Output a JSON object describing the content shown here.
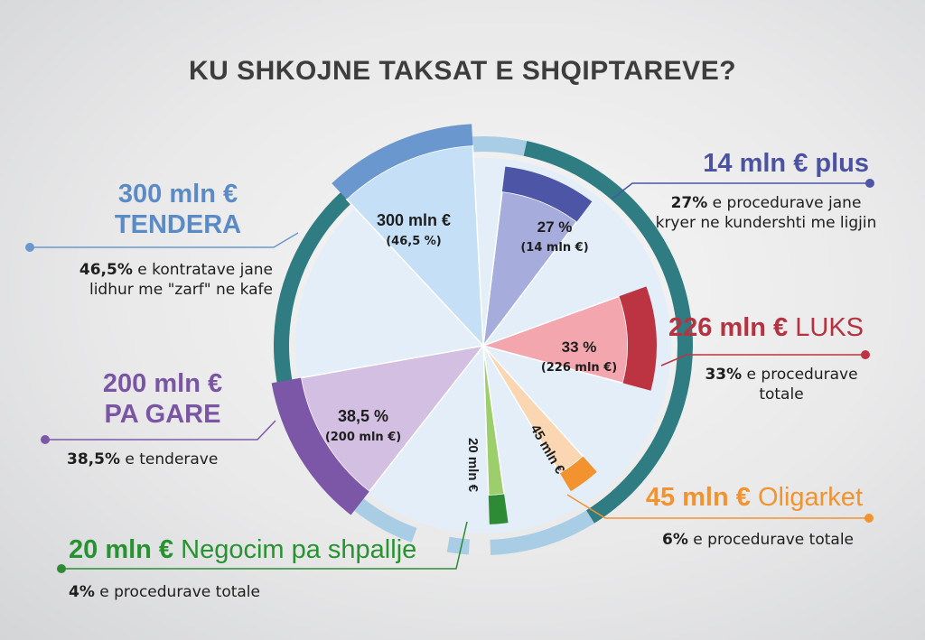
{
  "title": "KU SHKOJNE TAKSAT E SHQIPTAREVE?",
  "chart_data": {
    "type": "pie",
    "title": "KU SHKOJNE TAKSAT E SHQIPTAREVE?",
    "unit": "mln €",
    "slices": [
      {
        "id": "tendera",
        "value": 300,
        "pct": 46.5,
        "inner_label": "300 mln €",
        "inner_sub": "(46,5 %)",
        "callout": {
          "amount": "300 mln €",
          "name": "TENDERA",
          "desc_bold": "46,5%",
          "desc_rest": " e kontratave jane lidhur me \"zarf\" ne kafe"
        },
        "colors": {
          "fill": "#c5e0f6",
          "band": "#6b97cf",
          "text": "#5a8bc6",
          "line": "#6b97cf"
        }
      },
      {
        "id": "plus",
        "value": 14,
        "pct": 27,
        "inner_label": "27 %",
        "inner_sub": "(14 mln €)",
        "callout": {
          "amount": "14 mln € plus",
          "name": "",
          "desc_bold": "27%",
          "desc_rest": " e procedurave jane kryer ne kundershti me ligjin"
        },
        "colors": {
          "fill": "#a6acdb",
          "band": "#4c55a6",
          "text": "#4b52a2",
          "line": "#4c55a6"
        }
      },
      {
        "id": "luks",
        "value": 226,
        "pct": 33,
        "inner_label": "33 %",
        "inner_sub": "(226 mln €)",
        "callout": {
          "amount": "226 mln €",
          "name": "LUKS",
          "desc_bold": "33%",
          "desc_rest": " e procedurave totale"
        },
        "colors": {
          "fill": "#f3a6ae",
          "band": "#bc3441",
          "text": "#b53340",
          "line": "#bc3441"
        }
      },
      {
        "id": "oligarket",
        "value": 45,
        "pct": 6,
        "inner_label": "45 mln €",
        "inner_sub": "",
        "callout": {
          "amount": "45 mln €",
          "name": "Oligarket",
          "desc_bold": "6%",
          "desc_rest": " e procedurave totale"
        },
        "colors": {
          "fill": "#fbd6b2",
          "band": "#f29330",
          "text": "#f29330",
          "line": "#f29330"
        }
      },
      {
        "id": "negocim",
        "value": 20,
        "pct": 4,
        "inner_label": "20 mln €",
        "inner_sub": "",
        "callout": {
          "amount": "20 mln €",
          "name": "Negocim pa shpallje",
          "desc_bold": "4%",
          "desc_rest": " e procedurave totale"
        },
        "colors": {
          "fill": "#9cce6c",
          "band": "#2d8a35",
          "text": "#279330",
          "line": "#2d8a35"
        }
      },
      {
        "id": "pagare",
        "value": 200,
        "pct": 38.5,
        "inner_label": "38,5 %",
        "inner_sub": "(200 mln €)",
        "callout": {
          "amount": "200 mln €",
          "name": "PA GARE",
          "desc_bold": "38,5%",
          "desc_rest": " e tenderave"
        },
        "colors": {
          "fill": "#d3bfe1",
          "band": "#7d57a7",
          "text": "#7a55a4",
          "line": "#7d57a7"
        }
      }
    ],
    "ring_colors": {
      "teal": "#2f7d82",
      "light": "#a9cde4",
      "disc": "#e3eef8"
    }
  }
}
